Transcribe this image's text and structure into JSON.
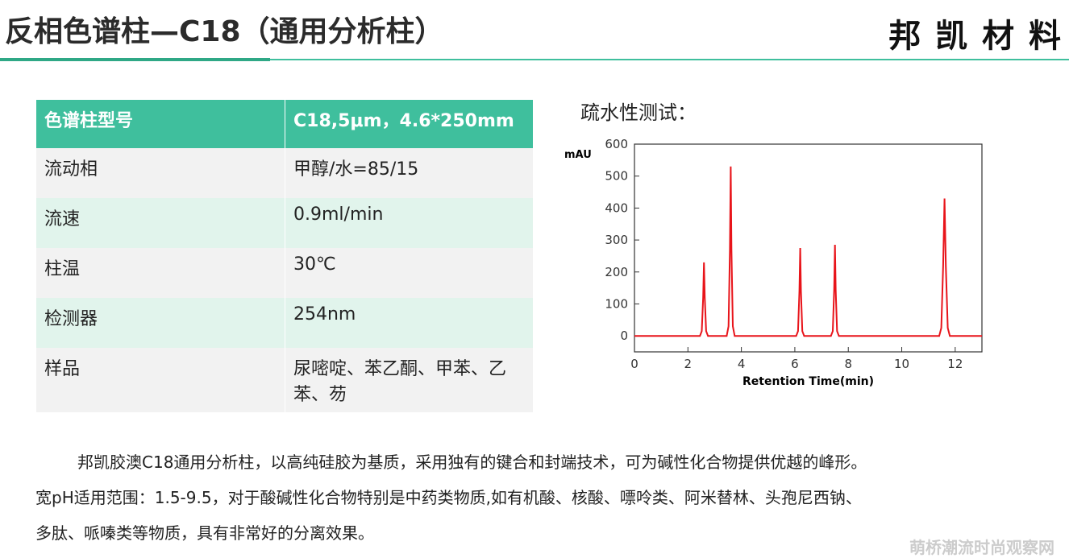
{
  "header": {
    "title": "反相色谱柱—C18（通用分析柱）",
    "brand": "邦 凯 材 料"
  },
  "table": {
    "rows": [
      [
        "色谱柱型号",
        "C18,5μm，4.6*250mm"
      ],
      [
        "流动相",
        "甲醇/水=85/15"
      ],
      [
        "流速",
        "0.9ml/min"
      ],
      [
        "柱温",
        "30℃"
      ],
      [
        "检测器",
        "254nm"
      ],
      [
        "样品",
        "尿嘧啶、苯乙酮、甲苯、乙苯、芴"
      ]
    ]
  },
  "chart_data": {
    "type": "line",
    "title": "疏水性测试：",
    "x_label": "Retention Time(min)",
    "y_label": "mAU",
    "xlim": [
      0,
      13
    ],
    "ylim": [
      -50,
      600
    ],
    "xticks": [
      0,
      2,
      4,
      6,
      8,
      10,
      12
    ],
    "yticks": [
      0,
      100,
      200,
      300,
      400,
      500,
      600
    ],
    "series": [
      {
        "color": "#e8141a",
        "x": [
          0,
          2.45,
          2.52,
          2.57,
          2.6,
          2.63,
          2.68,
          2.75,
          3.45,
          3.52,
          3.57,
          3.6,
          3.63,
          3.68,
          3.75,
          6.05,
          6.12,
          6.17,
          6.2,
          6.23,
          6.28,
          6.35,
          7.35,
          7.42,
          7.47,
          7.5,
          7.53,
          7.58,
          7.65,
          11.4,
          11.48,
          11.55,
          11.6,
          11.65,
          11.72,
          11.8,
          13
        ],
        "values": [
          0,
          0,
          15,
          120,
          230,
          120,
          15,
          0,
          0,
          30,
          270,
          530,
          270,
          30,
          0,
          0,
          15,
          140,
          275,
          140,
          15,
          0,
          0,
          15,
          145,
          285,
          145,
          15,
          0,
          0,
          25,
          220,
          430,
          220,
          25,
          0,
          0
        ]
      }
    ]
  },
  "body": {
    "lines": [
      "邦凯胶澳C18通用分析柱，以高纯硅胶为基质，采用独有的键合和封端技术，可为碱性化合物提供优越的峰形。",
      "宽pH适用范围：1.5-9.5，对于酸碱性化合物特别是中药类物质,如有机酸、核酸、嘌呤类、阿米替林、头孢尼西钠、",
      "多肽、哌嗪类等物质，具有非常好的分离效果。"
    ]
  },
  "watermark": "萌桥潮流时尚观察网"
}
